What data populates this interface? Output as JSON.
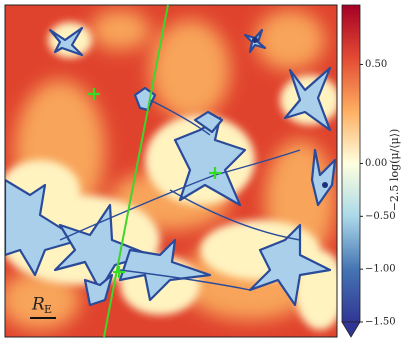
{
  "chart_data": {
    "type": "heatmap",
    "colorbar": {
      "label": "−2.5 log(μ/⟨μ⟩)",
      "vmin": -1.5,
      "vcenter": 0,
      "vmax": 0.8,
      "colors": [
        "#313695",
        "#4575b4",
        "#abd9e9",
        "#ffffdf",
        "#fdae61",
        "#e34a33",
        "#a50026"
      ],
      "ticks": [
        {
          "value": 0.5,
          "label": "0.50"
        },
        {
          "value": 0,
          "label": "0.00"
        },
        {
          "value": -0.5,
          "label": "−0.50"
        },
        {
          "value": -1,
          "label": "−1.00"
        },
        {
          "value": -1.5,
          "label": "−1.50"
        }
      ],
      "extend": "min"
    },
    "scale_label": {
      "main": "R",
      "sub": "E"
    }
  }
}
